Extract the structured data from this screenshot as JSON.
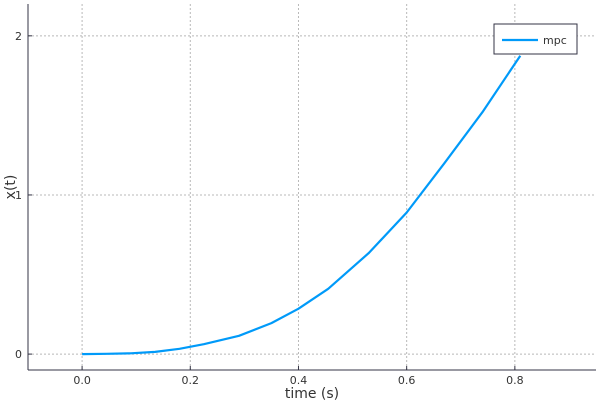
{
  "chart_data": {
    "type": "line",
    "title": "",
    "xlabel": "time (s)",
    "ylabel": "x(t)",
    "xlim": [
      -0.1,
      0.95
    ],
    "ylim": [
      -0.1,
      2.2
    ],
    "xticks": [
      0.0,
      0.2,
      0.4,
      0.6,
      0.8
    ],
    "xtick_labels": [
      "0.0",
      "0.2",
      "0.4",
      "0.6",
      "0.8"
    ],
    "yticks": [
      0,
      1,
      2
    ],
    "ytick_labels": [
      "0",
      "1",
      "2"
    ],
    "grid": true,
    "legend_position": "top-right",
    "series": [
      {
        "name": "mpc",
        "color": "#009af9",
        "x": [
          0.0,
          0.045,
          0.09,
          0.135,
          0.18,
          0.225,
          0.29,
          0.35,
          0.4,
          0.455,
          0.53,
          0.6,
          0.67,
          0.74,
          0.81
        ],
        "y": [
          0.0,
          0.002,
          0.005,
          0.014,
          0.033,
          0.062,
          0.115,
          0.195,
          0.285,
          0.41,
          0.635,
          0.89,
          1.2,
          1.52,
          1.875
        ]
      }
    ]
  }
}
